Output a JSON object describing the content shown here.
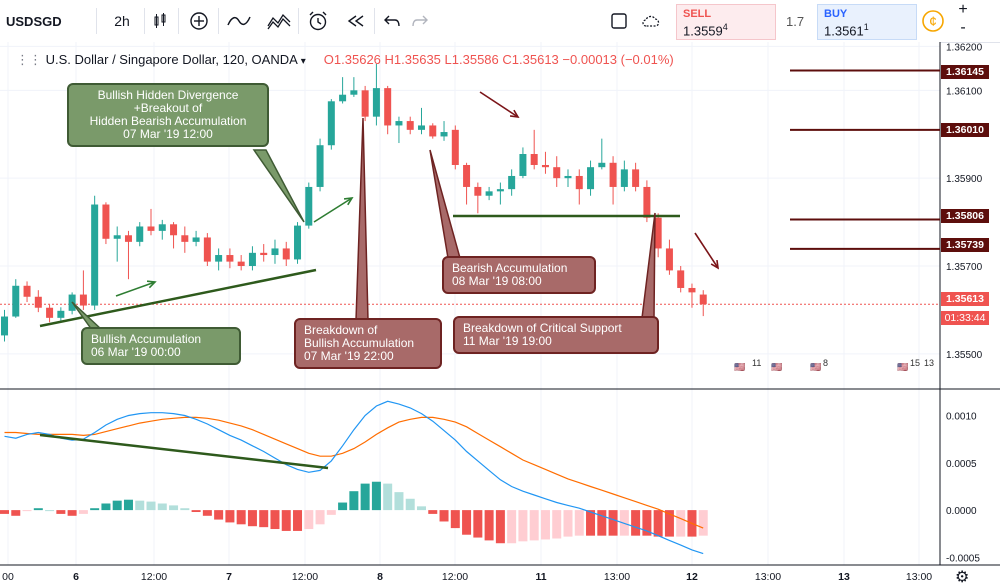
{
  "toolbar": {
    "symbol": "USDSGD",
    "interval": "2h",
    "sell_label": "SELL",
    "sell_price": "1.3559",
    "sell_price_sup": "4",
    "spread": "1.7",
    "buy_label": "BUY",
    "buy_price": "1.3561",
    "buy_price_sup": "1",
    "plus_label": "+",
    "minus_label": "-",
    "icons": [
      "candles-icon",
      "add-indicator-icon",
      "line-chart-icon",
      "compare-icon",
      "alert-clock-icon",
      "replay-icon",
      "undo-icon",
      "redo-icon",
      "rect-icon",
      "cloud-icon",
      "settings-icon"
    ]
  },
  "legend": {
    "title": "U.S. Dollar / Singapore Dollar, 120, OANDA",
    "open": "O1.35626",
    "high": "H1.35635",
    "low": "L1.35586",
    "close": "C1.35613",
    "change": "−0.00013 (−0.01%)"
  },
  "annotations": [
    {
      "text": "Bullish Hidden Divergence\n+Breakout of\nHidden Bearish Accumulation\n07 Mar '19 12:00",
      "style": "green"
    },
    {
      "text": "Bullish Accumulation\n06 Mar '19 00:00",
      "style": "green"
    },
    {
      "text": "Breakdown of\nBullish Accumulation\n07 Mar '19 22:00",
      "style": "red"
    },
    {
      "text": "Bearish Accumulation\n08 Mar '19 08:00",
      "style": "red"
    },
    {
      "text": "Breakdown of Critical Support\n11 Mar '19 19:00",
      "style": "red"
    }
  ],
  "price_tags": {
    "level1": "1.36145",
    "level2": "1.36010",
    "level3": "1.35806",
    "level4": "1.35739",
    "current": "1.35613",
    "countdown": "01:33:44"
  },
  "event_flags": [
    "11",
    "8",
    "15",
    "13"
  ],
  "colors": {
    "up": "#26a69a",
    "down": "#ef5350",
    "macd_line": "#2196f3",
    "signal_line": "#ff6d00",
    "hist_up_strong": "#26a69a",
    "hist_up_weak": "#b2dfdb",
    "hist_down_strong": "#ef5350",
    "hist_down_weak": "#ffcdd2",
    "level_line": "#5d0e0c",
    "trend_green": "#2e5a1c"
  },
  "chart_data": [
    {
      "type": "candlestick",
      "title": "U.S. Dollar / Singapore Dollar, 120, OANDA",
      "x_tick_labels": [
        "00",
        "6",
        "12:00",
        "7",
        "12:00",
        "8",
        "12:00",
        "11",
        "13:00",
        "12",
        "13:00",
        "13",
        "13:00"
      ],
      "y_tick_labels": [
        "1.35500",
        "1.35700",
        "1.35900",
        "1.36100",
        "1.36200"
      ],
      "ylim": [
        1.3542,
        1.3621
      ],
      "candles": [
        {
          "o": 1.35542,
          "h": 1.356,
          "l": 1.35528,
          "c": 1.35585
        },
        {
          "o": 1.35585,
          "h": 1.3567,
          "l": 1.35582,
          "c": 1.35655
        },
        {
          "o": 1.35655,
          "h": 1.35665,
          "l": 1.35618,
          "c": 1.3563
        },
        {
          "o": 1.3563,
          "h": 1.35645,
          "l": 1.35595,
          "c": 1.35605
        },
        {
          "o": 1.35605,
          "h": 1.35612,
          "l": 1.35572,
          "c": 1.35582
        },
        {
          "o": 1.35582,
          "h": 1.35606,
          "l": 1.35572,
          "c": 1.35598
        },
        {
          "o": 1.35598,
          "h": 1.3564,
          "l": 1.3559,
          "c": 1.35635
        },
        {
          "o": 1.35635,
          "h": 1.3569,
          "l": 1.356,
          "c": 1.3561
        },
        {
          "o": 1.3561,
          "h": 1.3586,
          "l": 1.356,
          "c": 1.3584
        },
        {
          "o": 1.3584,
          "h": 1.35845,
          "l": 1.3575,
          "c": 1.35762
        },
        {
          "o": 1.35762,
          "h": 1.3579,
          "l": 1.3571,
          "c": 1.3577
        },
        {
          "o": 1.3577,
          "h": 1.3578,
          "l": 1.3567,
          "c": 1.35755
        },
        {
          "o": 1.35755,
          "h": 1.358,
          "l": 1.35745,
          "c": 1.3579
        },
        {
          "o": 1.3579,
          "h": 1.3583,
          "l": 1.3577,
          "c": 1.3578
        },
        {
          "o": 1.3578,
          "h": 1.35805,
          "l": 1.3576,
          "c": 1.35795
        },
        {
          "o": 1.35795,
          "h": 1.358,
          "l": 1.3574,
          "c": 1.3577
        },
        {
          "o": 1.3577,
          "h": 1.3579,
          "l": 1.3573,
          "c": 1.35755
        },
        {
          "o": 1.35755,
          "h": 1.3578,
          "l": 1.35745,
          "c": 1.35765
        },
        {
          "o": 1.35765,
          "h": 1.35775,
          "l": 1.357,
          "c": 1.3571
        },
        {
          "o": 1.3571,
          "h": 1.3574,
          "l": 1.3569,
          "c": 1.35725
        },
        {
          "o": 1.35725,
          "h": 1.3574,
          "l": 1.35695,
          "c": 1.3571
        },
        {
          "o": 1.3571,
          "h": 1.35725,
          "l": 1.3569,
          "c": 1.357
        },
        {
          "o": 1.357,
          "h": 1.35745,
          "l": 1.3569,
          "c": 1.3573
        },
        {
          "o": 1.3573,
          "h": 1.3575,
          "l": 1.3571,
          "c": 1.35725
        },
        {
          "o": 1.35725,
          "h": 1.3576,
          "l": 1.35705,
          "c": 1.3574
        },
        {
          "o": 1.3574,
          "h": 1.35755,
          "l": 1.357,
          "c": 1.35715
        },
        {
          "o": 1.35715,
          "h": 1.358,
          "l": 1.35705,
          "c": 1.35792
        },
        {
          "o": 1.35792,
          "h": 1.3589,
          "l": 1.35785,
          "c": 1.3588
        },
        {
          "o": 1.3588,
          "h": 1.3599,
          "l": 1.3587,
          "c": 1.35975
        },
        {
          "o": 1.35975,
          "h": 1.3608,
          "l": 1.35965,
          "c": 1.36075
        },
        {
          "o": 1.36075,
          "h": 1.3613,
          "l": 1.3607,
          "c": 1.3609
        },
        {
          "o": 1.3609,
          "h": 1.3613,
          "l": 1.36085,
          "c": 1.361
        },
        {
          "o": 1.361,
          "h": 1.3611,
          "l": 1.3603,
          "c": 1.3604
        },
        {
          "o": 1.3604,
          "h": 1.3616,
          "l": 1.3602,
          "c": 1.36105
        },
        {
          "o": 1.36105,
          "h": 1.3611,
          "l": 1.36,
          "c": 1.3602
        },
        {
          "o": 1.3602,
          "h": 1.3604,
          "l": 1.3598,
          "c": 1.3603
        },
        {
          "o": 1.3603,
          "h": 1.3604,
          "l": 1.36,
          "c": 1.3601
        },
        {
          "o": 1.3601,
          "h": 1.3606,
          "l": 1.36,
          "c": 1.3602
        },
        {
          "o": 1.3602,
          "h": 1.36025,
          "l": 1.3599,
          "c": 1.35995
        },
        {
          "o": 1.35995,
          "h": 1.3603,
          "l": 1.35985,
          "c": 1.36005
        },
        {
          "o": 1.3601,
          "h": 1.3602,
          "l": 1.3592,
          "c": 1.3593
        },
        {
          "o": 1.3593,
          "h": 1.35935,
          "l": 1.3584,
          "c": 1.3588
        },
        {
          "o": 1.3588,
          "h": 1.3589,
          "l": 1.3582,
          "c": 1.3586
        },
        {
          "o": 1.3586,
          "h": 1.3588,
          "l": 1.3585,
          "c": 1.3587
        },
        {
          "o": 1.3587,
          "h": 1.3589,
          "l": 1.3584,
          "c": 1.35875
        },
        {
          "o": 1.35875,
          "h": 1.3592,
          "l": 1.3586,
          "c": 1.35905
        },
        {
          "o": 1.35905,
          "h": 1.3597,
          "l": 1.359,
          "c": 1.35955
        },
        {
          "o": 1.35955,
          "h": 1.3601,
          "l": 1.3592,
          "c": 1.3593
        },
        {
          "o": 1.3593,
          "h": 1.3596,
          "l": 1.3591,
          "c": 1.35925
        },
        {
          "o": 1.35925,
          "h": 1.3595,
          "l": 1.3588,
          "c": 1.359
        },
        {
          "o": 1.359,
          "h": 1.3592,
          "l": 1.3588,
          "c": 1.35905
        },
        {
          "o": 1.35905,
          "h": 1.3592,
          "l": 1.3584,
          "c": 1.35875
        },
        {
          "o": 1.35875,
          "h": 1.3594,
          "l": 1.3586,
          "c": 1.35925
        },
        {
          "o": 1.35925,
          "h": 1.3599,
          "l": 1.3592,
          "c": 1.35935
        },
        {
          "o": 1.35935,
          "h": 1.3595,
          "l": 1.3584,
          "c": 1.3588
        },
        {
          "o": 1.3588,
          "h": 1.3594,
          "l": 1.3587,
          "c": 1.3592
        },
        {
          "o": 1.3592,
          "h": 1.35935,
          "l": 1.3587,
          "c": 1.3588
        },
        {
          "o": 1.3588,
          "h": 1.35895,
          "l": 1.358,
          "c": 1.3581
        },
        {
          "o": 1.3581,
          "h": 1.3582,
          "l": 1.3572,
          "c": 1.3574
        },
        {
          "o": 1.3574,
          "h": 1.3576,
          "l": 1.3568,
          "c": 1.3569
        },
        {
          "o": 1.3569,
          "h": 1.357,
          "l": 1.3564,
          "c": 1.3565
        },
        {
          "o": 1.3565,
          "h": 1.3566,
          "l": 1.35605,
          "c": 1.3564
        },
        {
          "o": 1.35635,
          "h": 1.35645,
          "l": 1.35586,
          "c": 1.35613
        }
      ],
      "horizontal_levels": [
        1.36145,
        1.3601,
        1.35806,
        1.35739
      ],
      "current_price": 1.35613
    },
    {
      "type": "macd",
      "y_tick_labels": [
        "0.0010",
        "0.0005",
        "0.0000",
        "-0.0005"
      ],
      "ylim": [
        -0.00058,
        0.00128
      ],
      "macd_line": [
        0.00078,
        0.00076,
        0.0008,
        0.00082,
        0.0008,
        0.00076,
        0.00074,
        0.00075,
        0.00082,
        0.0009,
        0.00096,
        0.001,
        0.00102,
        0.00103,
        0.00103,
        0.00102,
        0.001,
        0.00096,
        0.00091,
        0.00085,
        0.00079,
        0.00074,
        0.00068,
        0.00062,
        0.00055,
        0.00048,
        0.00043,
        0.0004,
        0.00042,
        0.00052,
        0.00068,
        0.00085,
        0.001,
        0.0011,
        0.00115,
        0.00112,
        0.00108,
        0.00102,
        0.00094,
        0.00084,
        0.00074,
        0.00062,
        0.00052,
        0.00042,
        0.00032,
        0.00025,
        0.0002,
        0.00016,
        0.00012,
        8e-05,
        5e-05,
        2e-05,
        -2e-05,
        -6e-05,
        -0.0001,
        -0.00014,
        -0.00018,
        -0.00022,
        -0.00027,
        -0.00032,
        -0.00037,
        -0.00042,
        -0.00046
      ],
      "signal_line": [
        0.00082,
        0.00082,
        0.00081,
        0.0008,
        0.0008,
        0.0008,
        0.0008,
        0.00079,
        0.0008,
        0.00083,
        0.00086,
        0.00089,
        0.00092,
        0.00094,
        0.00096,
        0.00097,
        0.00098,
        0.00098,
        0.00097,
        0.00095,
        0.00092,
        0.00089,
        0.00085,
        0.0008,
        0.00075,
        0.0007,
        0.00065,
        0.0006,
        0.00057,
        0.00057,
        0.0006,
        0.00065,
        0.00072,
        0.0008,
        0.00087,
        0.00093,
        0.00096,
        0.00098,
        0.00098,
        0.00096,
        0.00093,
        0.00088,
        0.00081,
        0.00074,
        0.00067,
        0.0006,
        0.00053,
        0.00048,
        0.00043,
        0.00038,
        0.00033,
        0.00029,
        0.00025,
        0.00021,
        0.00017,
        0.00013,
        9e-05,
        5e-05,
        1e-05,
        -4e-05,
        -9e-05,
        -0.00014,
        -0.00019
      ]
    }
  ]
}
